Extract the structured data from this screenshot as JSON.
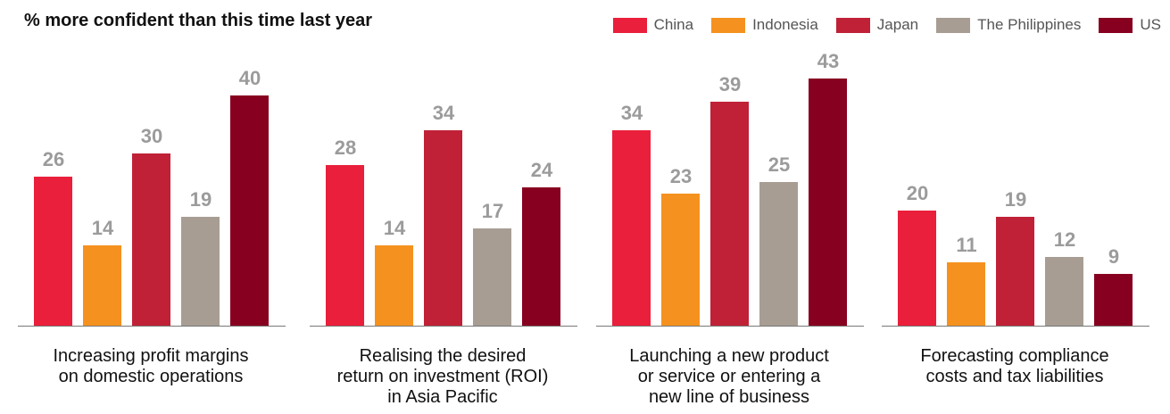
{
  "chart_data": {
    "type": "bar",
    "title": "% more confident than this time last year",
    "categories": [
      "Increasing profit margins\non domestic operations",
      "Realising the desired\nreturn on investment (ROI)\nin Asia Pacific",
      "Launching a new product\nor service or entering a\nnew line of business",
      "Forecasting compliance\ncosts and tax liabilities"
    ],
    "series": [
      {
        "name": "China",
        "color": "#ea1f3b",
        "values": [
          26,
          28,
          34,
          20
        ]
      },
      {
        "name": "Indonesia",
        "color": "#f5921f",
        "values": [
          14,
          14,
          23,
          11
        ]
      },
      {
        "name": "Japan",
        "color": "#c02137",
        "values": [
          30,
          34,
          39,
          19
        ]
      },
      {
        "name": "The Philippines",
        "color": "#a79d93",
        "values": [
          19,
          17,
          25,
          12
        ]
      },
      {
        "name": "US",
        "color": "#88001f",
        "values": [
          40,
          24,
          43,
          9
        ]
      }
    ]
  }
}
